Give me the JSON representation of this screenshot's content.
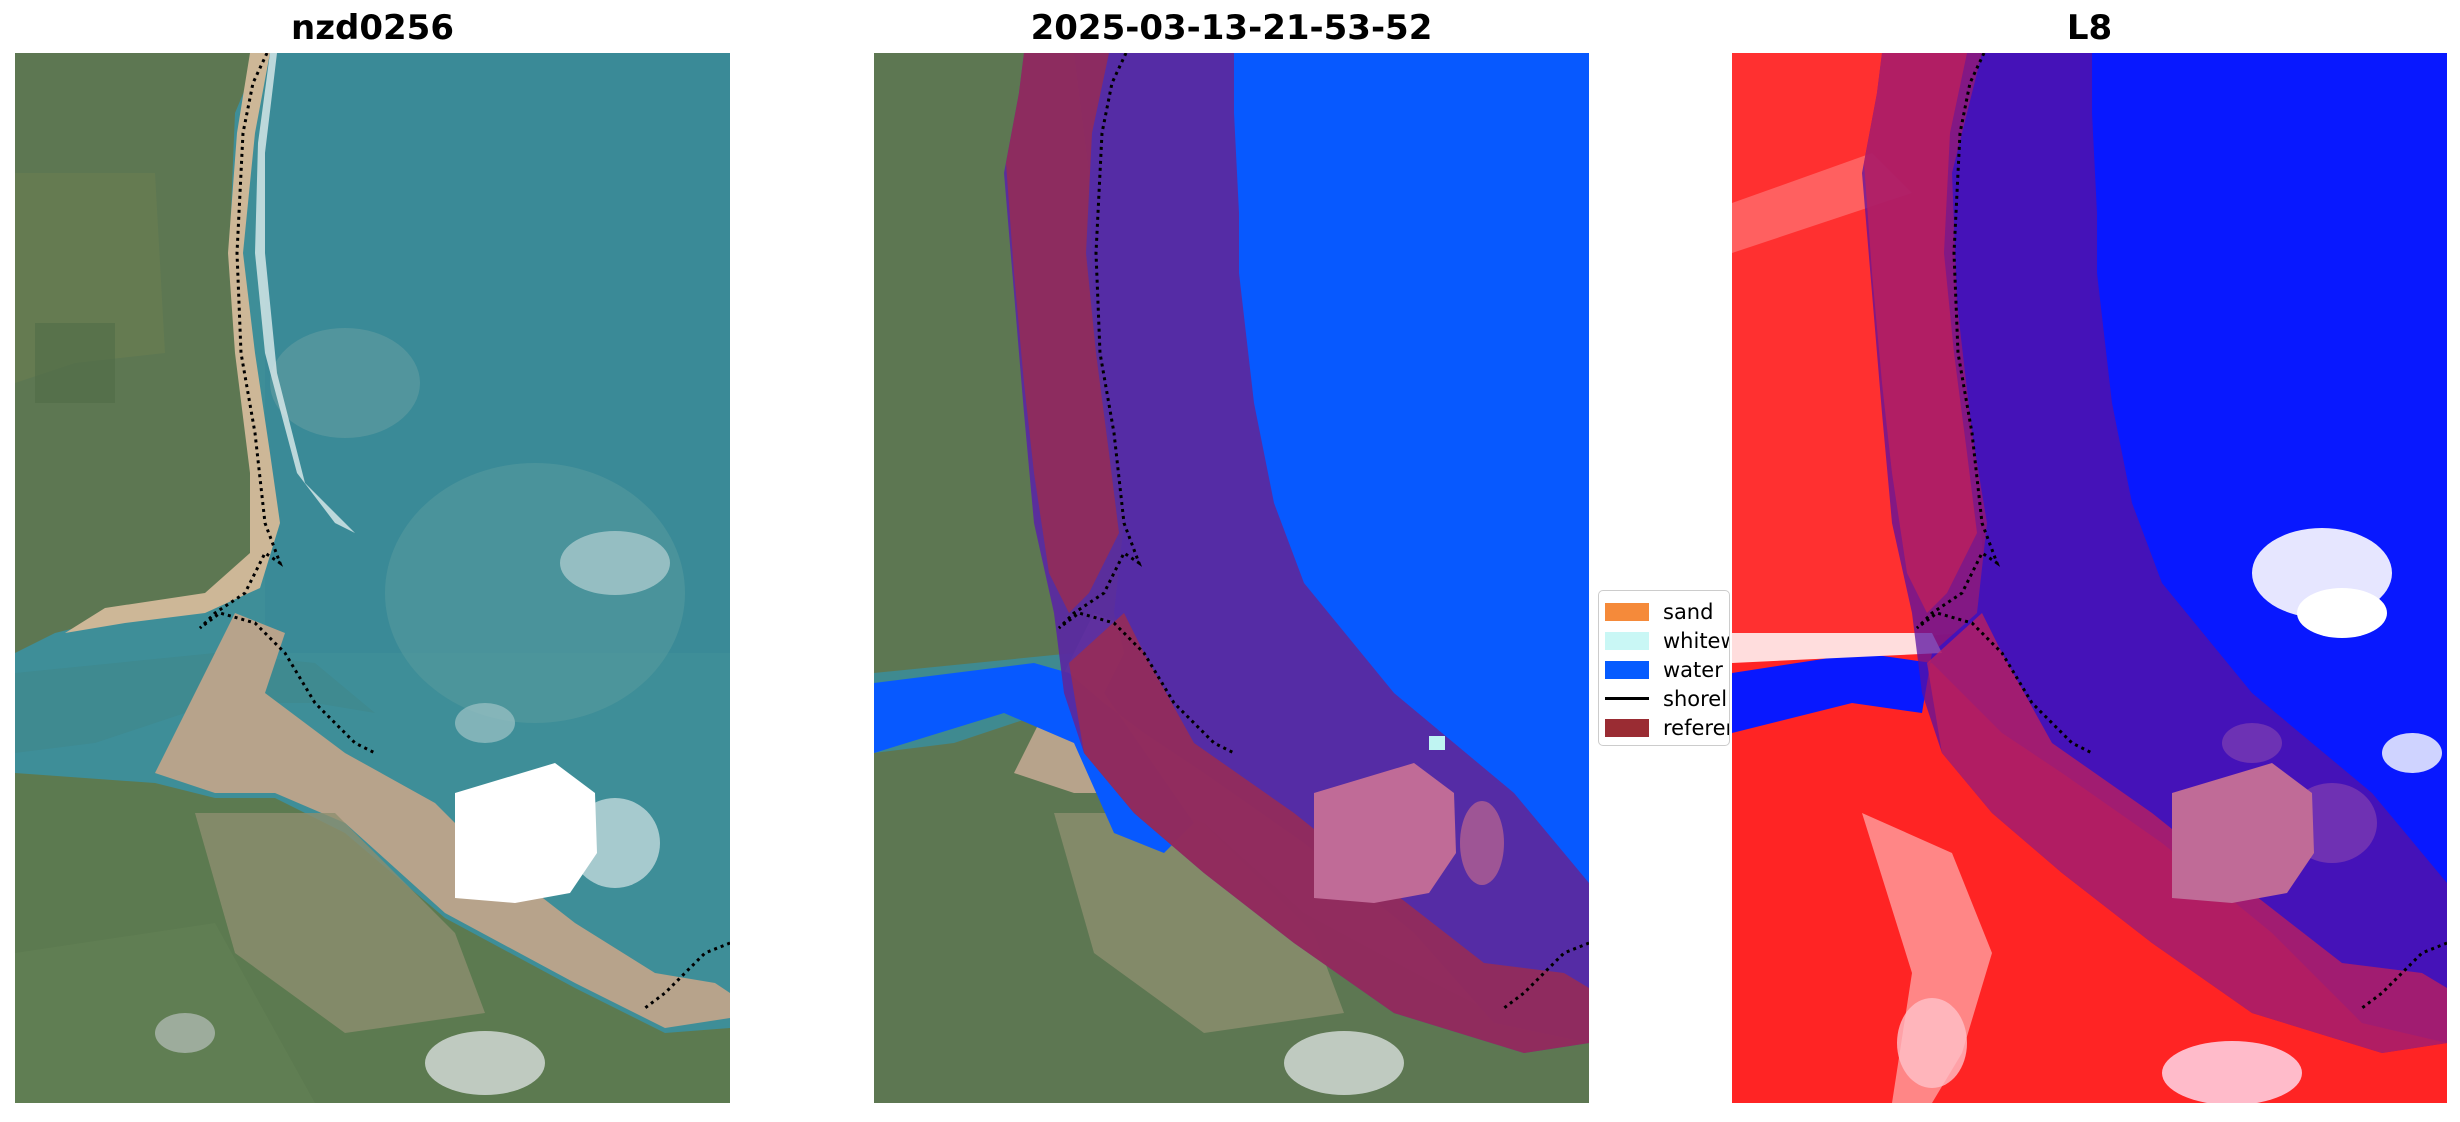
{
  "panels": {
    "left_title": "nzd0256",
    "middle_title": "2025-03-13-21-53-52",
    "right_title": "L8"
  },
  "legend": {
    "items": [
      {
        "label": "sand",
        "color": "#f58a3a"
      },
      {
        "label": "whitew",
        "color": "#c9f7f5"
      },
      {
        "label": "water",
        "color": "#055bff"
      },
      {
        "label": "shorel",
        "color": "#000000"
      },
      {
        "label": "referen",
        "color": "#9a2c33"
      }
    ]
  },
  "colors": {
    "ocean": "#3f8f9a",
    "land_green": "#5f7a52",
    "beach_sand": "#c9b496",
    "water_class": "#0a5cff",
    "reference_overlay": "#9a1f3f",
    "index_land": "#ff2020",
    "index_water": "#0a14ff"
  }
}
